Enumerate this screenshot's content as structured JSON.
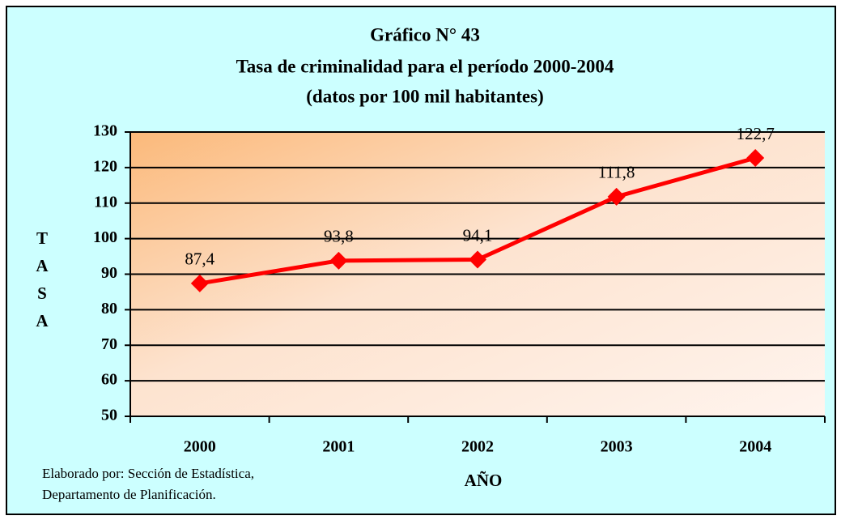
{
  "chart_data": {
    "type": "line",
    "title": [
      "Gráfico N° 43",
      "Tasa de criminalidad para el período 2000-2004",
      "(datos por 100 mil habitantes)"
    ],
    "y_label": "TASA",
    "x_label": "AÑO",
    "note": [
      "Elaborado por: Sección de Estadística,",
      "Departamento de Planificación."
    ],
    "categories": [
      "2000",
      "2001",
      "2002",
      "2003",
      "2004"
    ],
    "series": [
      {
        "name": "Tasa",
        "color": "#ff0000",
        "values": [
          87.4,
          93.8,
          94.1,
          111.8,
          122.7
        ],
        "value_labels": [
          "87,4",
          "93,8",
          "94,1",
          "111,8",
          "122,7"
        ]
      }
    ],
    "ylim": [
      50,
      130
    ],
    "yticks": [
      50,
      60,
      70,
      80,
      90,
      100,
      110,
      120,
      130
    ],
    "grid": true
  }
}
